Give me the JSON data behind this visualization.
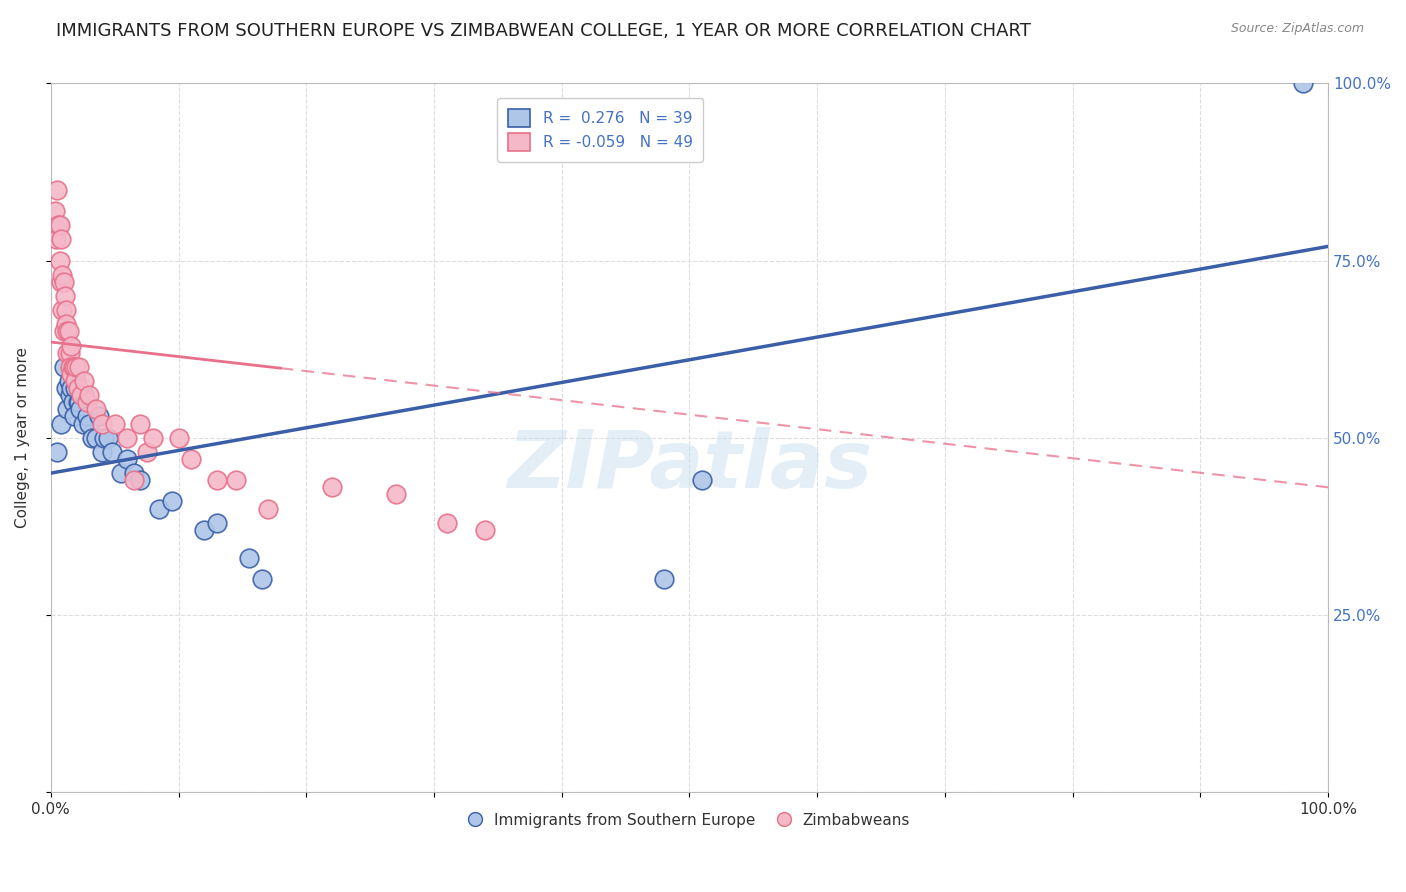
{
  "title": "IMMIGRANTS FROM SOUTHERN EUROPE VS ZIMBABWEAN COLLEGE, 1 YEAR OR MORE CORRELATION CHART",
  "source": "Source: ZipAtlas.com",
  "ylabel": "College, 1 year or more",
  "watermark": "ZIPatlas",
  "blue_R": 0.276,
  "blue_N": 39,
  "pink_R": -0.059,
  "pink_N": 49,
  "blue_color": "#aec6e8",
  "pink_color": "#f4b8c8",
  "blue_line_color": "#3a5fa8",
  "pink_line_color": "#e8708a",
  "legend_blue_label": "Immigrants from Southern Europe",
  "legend_pink_label": "Zimbabweans",
  "blue_scatter_x": [
    0.005,
    0.008,
    0.01,
    0.012,
    0.013,
    0.014,
    0.015,
    0.016,
    0.017,
    0.018,
    0.019,
    0.02,
    0.021,
    0.022,
    0.023,
    0.025,
    0.026,
    0.028,
    0.03,
    0.032,
    0.035,
    0.038,
    0.04,
    0.042,
    0.045,
    0.048,
    0.055,
    0.06,
    0.065,
    0.07,
    0.085,
    0.095,
    0.12,
    0.13,
    0.155,
    0.165,
    0.48,
    0.51,
    0.98
  ],
  "blue_scatter_y": [
    0.48,
    0.52,
    0.6,
    0.57,
    0.54,
    0.58,
    0.56,
    0.57,
    0.55,
    0.53,
    0.57,
    0.58,
    0.55,
    0.55,
    0.54,
    0.52,
    0.56,
    0.53,
    0.52,
    0.5,
    0.5,
    0.53,
    0.48,
    0.5,
    0.5,
    0.48,
    0.45,
    0.47,
    0.45,
    0.44,
    0.4,
    0.41,
    0.37,
    0.38,
    0.33,
    0.3,
    0.3,
    0.44,
    1.0
  ],
  "pink_scatter_x": [
    0.003,
    0.004,
    0.005,
    0.006,
    0.007,
    0.007,
    0.008,
    0.008,
    0.009,
    0.009,
    0.01,
    0.01,
    0.011,
    0.012,
    0.012,
    0.013,
    0.013,
    0.014,
    0.015,
    0.015,
    0.016,
    0.016,
    0.017,
    0.018,
    0.019,
    0.02,
    0.021,
    0.022,
    0.024,
    0.026,
    0.028,
    0.03,
    0.035,
    0.04,
    0.05,
    0.06,
    0.065,
    0.07,
    0.075,
    0.08,
    0.1,
    0.11,
    0.13,
    0.145,
    0.17,
    0.22,
    0.27,
    0.31,
    0.34
  ],
  "pink_scatter_y": [
    0.82,
    0.78,
    0.85,
    0.8,
    0.8,
    0.75,
    0.72,
    0.78,
    0.73,
    0.68,
    0.65,
    0.72,
    0.7,
    0.68,
    0.66,
    0.65,
    0.62,
    0.65,
    0.62,
    0.6,
    0.63,
    0.59,
    0.6,
    0.6,
    0.58,
    0.6,
    0.57,
    0.6,
    0.56,
    0.58,
    0.55,
    0.56,
    0.54,
    0.52,
    0.52,
    0.5,
    0.44,
    0.52,
    0.48,
    0.5,
    0.5,
    0.47,
    0.44,
    0.44,
    0.4,
    0.43,
    0.42,
    0.38,
    0.37
  ],
  "background_color": "#ffffff",
  "grid_color": "#dddddd",
  "title_fontsize": 13,
  "axis_label_fontsize": 11,
  "tick_fontsize": 11,
  "legend_fontsize": 11,
  "xlim": [
    0.0,
    1.0
  ],
  "ylim": [
    0.0,
    1.0
  ],
  "blue_line_x0": 0.0,
  "blue_line_y0": 0.45,
  "blue_line_x1": 1.0,
  "blue_line_y1": 0.77,
  "pink_line_x0": 0.0,
  "pink_line_y0": 0.635,
  "pink_line_x1": 1.0,
  "pink_line_y1": 0.43
}
